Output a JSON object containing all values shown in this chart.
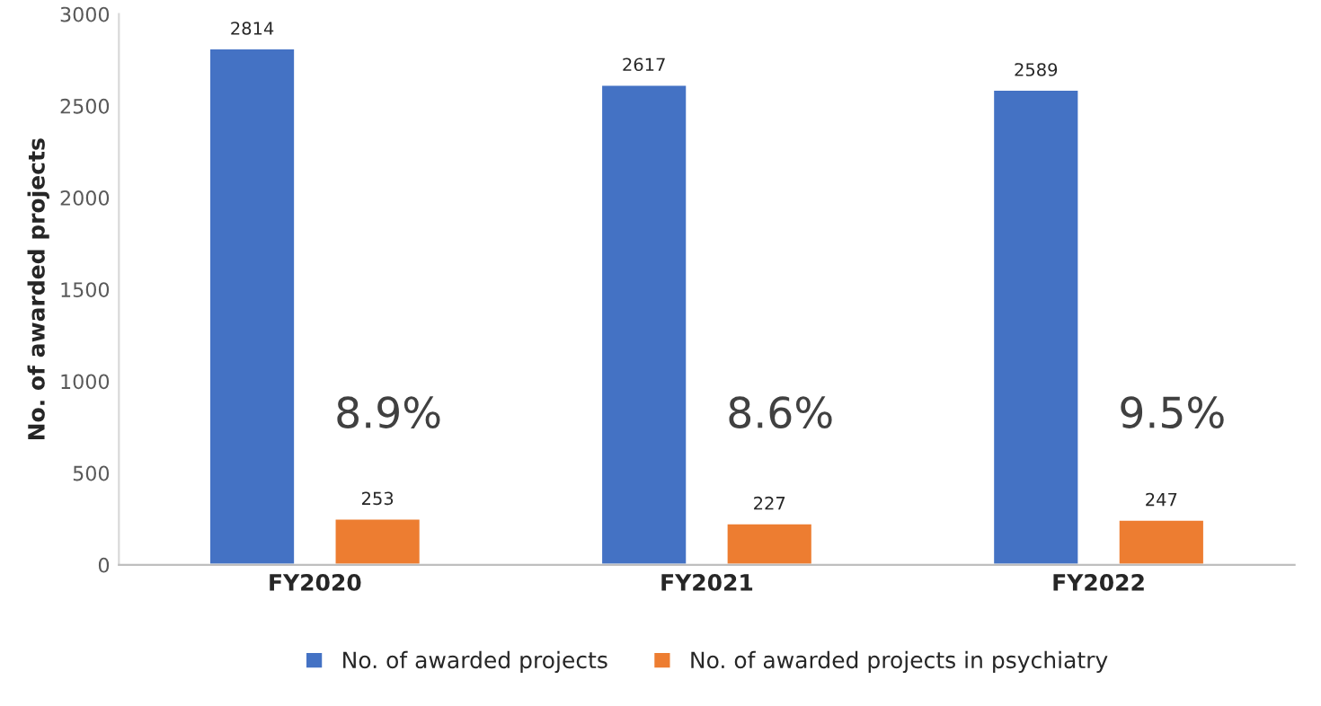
{
  "chart_data": {
    "type": "bar",
    "ylabel": "No. of awarded projects",
    "categories": [
      "FY2020",
      "FY2021",
      "FY2022"
    ],
    "series": [
      {
        "name": "No. of awarded projects",
        "color": "#4472c4",
        "values": [
          2814,
          2617,
          2589
        ]
      },
      {
        "name": "No. of awarded projects in psychiatry",
        "color": "#ed7d31",
        "values": [
          253,
          227,
          247
        ]
      }
    ],
    "ylim": [
      0,
      3000
    ],
    "yticks": [
      0,
      500,
      1000,
      1500,
      2000,
      2500,
      3000
    ],
    "data_labels": true,
    "legend": "bottom",
    "grid": false,
    "annotations": [
      "8.9%",
      "8.6%",
      "9.5%"
    ]
  }
}
